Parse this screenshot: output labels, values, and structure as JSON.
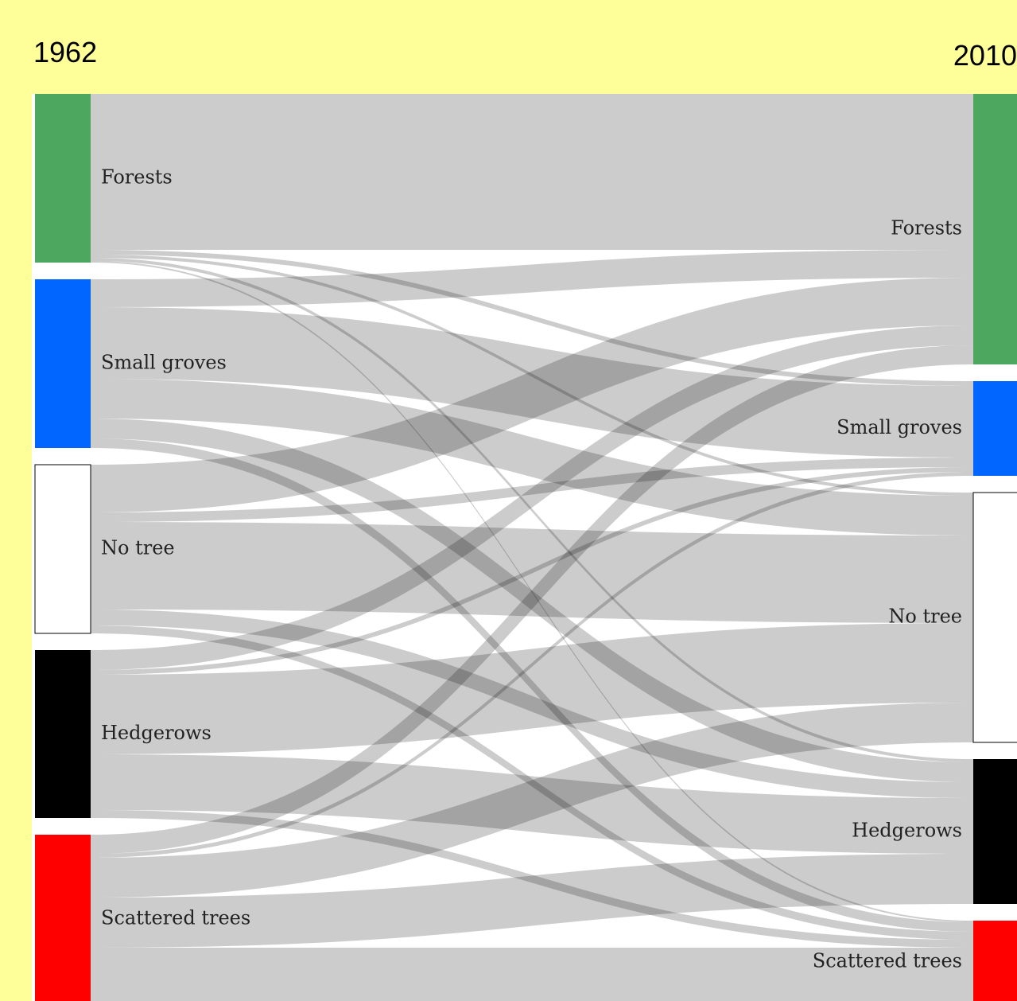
{
  "chart_data": {
    "type": "sankey",
    "left_label": "1962",
    "right_label": "2010",
    "nodes": [
      {
        "name": "Forests",
        "color": "#4ea75e"
      },
      {
        "name": "Small groves",
        "color": "#0066ff"
      },
      {
        "name": "No tree",
        "color": "#ffffff"
      },
      {
        "name": "Hedgerows",
        "color": "#000000"
      },
      {
        "name": "Scattered trees",
        "color": "#ff0000"
      }
    ],
    "links": [
      {
        "source": 0,
        "target": 0,
        "value": 196
      },
      {
        "source": 0,
        "target": 1,
        "value": 6
      },
      {
        "source": 0,
        "target": 2,
        "value": 4
      },
      {
        "source": 0,
        "target": 3,
        "value": 4
      },
      {
        "source": 0,
        "target": 4,
        "value": 2
      },
      {
        "source": 1,
        "target": 0,
        "value": 35
      },
      {
        "source": 1,
        "target": 1,
        "value": 90
      },
      {
        "source": 1,
        "target": 2,
        "value": 50
      },
      {
        "source": 1,
        "target": 3,
        "value": 25
      },
      {
        "source": 1,
        "target": 4,
        "value": 12
      },
      {
        "source": 2,
        "target": 0,
        "value": 60
      },
      {
        "source": 2,
        "target": 1,
        "value": 12
      },
      {
        "source": 2,
        "target": 2,
        "value": 110
      },
      {
        "source": 2,
        "target": 3,
        "value": 20
      },
      {
        "source": 2,
        "target": 4,
        "value": 10
      },
      {
        "source": 3,
        "target": 0,
        "value": 25
      },
      {
        "source": 3,
        "target": 1,
        "value": 6
      },
      {
        "source": 3,
        "target": 2,
        "value": 100
      },
      {
        "source": 3,
        "target": 3,
        "value": 70
      },
      {
        "source": 3,
        "target": 4,
        "value": 10
      },
      {
        "source": 4,
        "target": 0,
        "value": 24
      },
      {
        "source": 4,
        "target": 1,
        "value": 5
      },
      {
        "source": 4,
        "target": 2,
        "value": 50
      },
      {
        "source": 4,
        "target": 3,
        "value": 63
      },
      {
        "source": 4,
        "target": 4,
        "value": 70
      }
    ]
  }
}
